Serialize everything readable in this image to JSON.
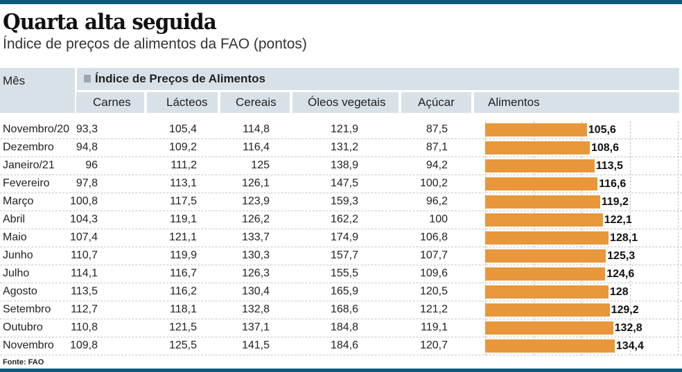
{
  "header": {
    "title": "Quarta alta seguida",
    "subtitle": "Índice de preços de alimentos da FAO (pontos)"
  },
  "footer": {
    "source": "Fonte: FAO"
  },
  "colors": {
    "accent_bar": "#0e5a7e",
    "bar": "#e8973a",
    "header_bg": "#d9e1e8"
  },
  "chart_data": {
    "type": "table",
    "title": "Quarta alta seguida",
    "subtitle": "Índice de preços de alimentos da FAO (pontos)",
    "row_header": "Mês",
    "group_header": "Índice de Preços de Alimentos",
    "columns": [
      "Carnes",
      "Lácteos",
      "Cereais",
      "Óleos vegetais",
      "Açúcar",
      "Alimentos"
    ],
    "rows": [
      {
        "month": "Novembro/20",
        "values": [
          "93,3",
          "105,4",
          "114,8",
          "121,9",
          "87,5",
          "105,6"
        ]
      },
      {
        "month": "Dezembro",
        "values": [
          "94,8",
          "109,2",
          "116,4",
          "131,2",
          "87,1",
          "108,6"
        ]
      },
      {
        "month": "Janeiro/21",
        "values": [
          "96",
          "111,2",
          "125",
          "138,9",
          "94,2",
          "113,5"
        ]
      },
      {
        "month": "Fevereiro",
        "values": [
          "97,8",
          "113,1",
          "126,1",
          "147,5",
          "100,2",
          "116,6"
        ]
      },
      {
        "month": "Março",
        "values": [
          "100,8",
          "117,5",
          "123,9",
          "159,3",
          "96,2",
          "119,2"
        ]
      },
      {
        "month": "Abril",
        "values": [
          "104,3",
          "119,1",
          "126,2",
          "162,2",
          "100",
          "122,1"
        ]
      },
      {
        "month": "Maio",
        "values": [
          "107,4",
          "121,1",
          "133,7",
          "174,9",
          "106,8",
          "128,1"
        ]
      },
      {
        "month": "Junho",
        "values": [
          "110,7",
          "119,9",
          "130,3",
          "157,7",
          "107,7",
          "125,3"
        ]
      },
      {
        "month": "Julho",
        "values": [
          "114,1",
          "116,7",
          "126,3",
          "155,5",
          "109,6",
          "124,6"
        ]
      },
      {
        "month": "Agosto",
        "values": [
          "113,5",
          "116,2",
          "130,4",
          "165,9",
          "120,5",
          "128"
        ]
      },
      {
        "month": "Setembro",
        "values": [
          "112,7",
          "118,1",
          "132,8",
          "168,6",
          "121,2",
          "129,2"
        ]
      },
      {
        "month": "Outubro",
        "values": [
          "110,8",
          "121,5",
          "137,1",
          "184,8",
          "119,1",
          "132,8"
        ]
      },
      {
        "month": "Novembro",
        "values": [
          "109,8",
          "125,5",
          "141,5",
          "184,6",
          "120,7",
          "134,4"
        ]
      }
    ],
    "bar_series": {
      "column": "Alimentos",
      "type": "bar",
      "orientation": "horizontal",
      "values": [
        105.6,
        108.6,
        113.5,
        116.6,
        119.2,
        122.1,
        128.1,
        125.3,
        124.6,
        128,
        129.2,
        132.8,
        134.4
      ],
      "xlim": [
        0,
        200
      ],
      "grid": true
    }
  }
}
